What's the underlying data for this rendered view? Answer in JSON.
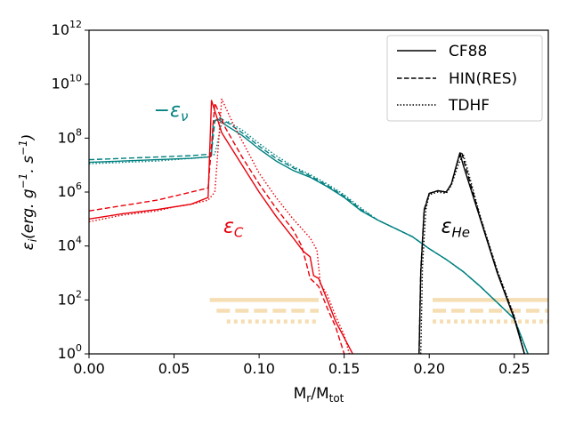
{
  "chart_data": {
    "type": "line",
    "xlabel": "M",
    "xlabel_sub1": "r",
    "xlabel_mid": "/M",
    "xlabel_sub2": "tot",
    "ylabel": "ε",
    "ylabel_sub": "i",
    "ylabel_rest": "(erg. g",
    "ylabel_exp1": "−1",
    "ylabel_mid": ". s",
    "ylabel_exp2": "−1",
    "ylabel_close": ")",
    "xlim": [
      0.0,
      0.27
    ],
    "ylim_log10": [
      0,
      12
    ],
    "xticks": [
      0.0,
      0.05,
      0.1,
      0.15,
      0.2,
      0.25
    ],
    "xtick_labels": [
      "0.00",
      "0.05",
      "0.10",
      "0.15",
      "0.20",
      "0.25"
    ],
    "yticks_log10": [
      0,
      2,
      4,
      6,
      8,
      10,
      12
    ],
    "ytick_base": "10",
    "ytick_exps": [
      "0",
      "2",
      "4",
      "6",
      "8",
      "10",
      "12"
    ],
    "legend": {
      "position": "top-right",
      "entries": [
        {
          "label": "CF88",
          "dash": "solid"
        },
        {
          "label": "HIN(RES)",
          "dash": "dashed"
        },
        {
          "label": "TDHF",
          "dash": "dotted"
        }
      ]
    },
    "annotations": [
      {
        "id": "nu",
        "sign": "−ε",
        "sub": "ν",
        "color": "#008080",
        "x": 0.038,
        "log10y": 8.8
      },
      {
        "id": "C",
        "main": "ε",
        "sub": "C",
        "color": "#e8000b",
        "x": 0.079,
        "log10y": 4.5
      },
      {
        "id": "He",
        "main": "ε",
        "sub": "He",
        "color": "#000000",
        "x": 0.207,
        "log10y": 4.5
      }
    ],
    "colors": {
      "nu": "#008080",
      "C": "#e8000b",
      "He": "#000000",
      "bands": "#f5deb3"
    },
    "bands": [
      {
        "dash": "solid",
        "log10y": 2.0,
        "x_ranges": [
          [
            0.071,
            0.135
          ],
          [
            0.202,
            0.27
          ]
        ]
      },
      {
        "dash": "dashed",
        "log10y": 1.6,
        "x_ranges": [
          [
            0.075,
            0.135
          ],
          [
            0.202,
            0.27
          ]
        ]
      },
      {
        "dash": "dotted",
        "log10y": 1.2,
        "x_ranges": [
          [
            0.081,
            0.135
          ],
          [
            0.202,
            0.27
          ]
        ]
      }
    ],
    "series": [
      {
        "name": "nu_CF88",
        "group": "nu",
        "dash": "solid",
        "points": [
          [
            0,
            7.1
          ],
          [
            0.02,
            7.15
          ],
          [
            0.04,
            7.2
          ],
          [
            0.06,
            7.25
          ],
          [
            0.07,
            7.3
          ],
          [
            0.072,
            7.35
          ],
          [
            0.073,
            8.6
          ],
          [
            0.076,
            8.7
          ],
          [
            0.08,
            8.5
          ],
          [
            0.09,
            8.1
          ],
          [
            0.1,
            7.6
          ],
          [
            0.11,
            7.15
          ],
          [
            0.12,
            6.8
          ],
          [
            0.13,
            6.55
          ],
          [
            0.14,
            6.2
          ],
          [
            0.15,
            5.8
          ],
          [
            0.16,
            5.3
          ],
          [
            0.17,
            4.95
          ],
          [
            0.18,
            4.65
          ],
          [
            0.19,
            4.35
          ],
          [
            0.2,
            3.9
          ],
          [
            0.21,
            3.5
          ],
          [
            0.22,
            3.05
          ],
          [
            0.23,
            2.5
          ],
          [
            0.24,
            1.9
          ],
          [
            0.25,
            1.3
          ],
          [
            0.258,
            0.0
          ]
        ]
      },
      {
        "name": "nu_HIN",
        "group": "nu",
        "dash": "dashed",
        "points": [
          [
            0,
            7.2
          ],
          [
            0.02,
            7.25
          ],
          [
            0.04,
            7.3
          ],
          [
            0.06,
            7.35
          ],
          [
            0.07,
            7.4
          ],
          [
            0.072,
            7.45
          ],
          [
            0.074,
            8.65
          ],
          [
            0.077,
            8.75
          ],
          [
            0.082,
            8.55
          ],
          [
            0.09,
            8.2
          ],
          [
            0.1,
            7.7
          ],
          [
            0.11,
            7.25
          ],
          [
            0.12,
            6.9
          ],
          [
            0.13,
            6.6
          ],
          [
            0.14,
            6.25
          ],
          [
            0.15,
            5.85
          ],
          [
            0.16,
            5.35
          ],
          [
            0.17,
            4.95
          ],
          [
            0.18,
            4.65
          ],
          [
            0.19,
            4.35
          ],
          [
            0.2,
            3.9
          ],
          [
            0.21,
            3.5
          ],
          [
            0.22,
            3.05
          ],
          [
            0.23,
            2.5
          ],
          [
            0.24,
            1.9
          ],
          [
            0.25,
            1.3
          ],
          [
            0.258,
            0.0
          ]
        ]
      },
      {
        "name": "nu_TDHF",
        "group": "nu",
        "dash": "dotted",
        "points": [
          [
            0,
            7.05
          ],
          [
            0.02,
            7.1
          ],
          [
            0.04,
            7.15
          ],
          [
            0.06,
            7.25
          ],
          [
            0.07,
            7.3
          ],
          [
            0.074,
            7.4
          ],
          [
            0.078,
            8.55
          ],
          [
            0.082,
            8.6
          ],
          [
            0.09,
            8.3
          ],
          [
            0.1,
            7.8
          ],
          [
            0.11,
            7.35
          ],
          [
            0.12,
            6.95
          ],
          [
            0.13,
            6.65
          ],
          [
            0.14,
            6.3
          ],
          [
            0.15,
            5.9
          ],
          [
            0.16,
            5.4
          ],
          [
            0.17,
            4.95
          ],
          [
            0.18,
            4.65
          ],
          [
            0.19,
            4.35
          ],
          [
            0.2,
            3.9
          ],
          [
            0.21,
            3.5
          ],
          [
            0.22,
            3.05
          ],
          [
            0.23,
            2.5
          ],
          [
            0.24,
            1.9
          ],
          [
            0.25,
            1.3
          ],
          [
            0.258,
            0.0
          ]
        ]
      },
      {
        "name": "C_CF88",
        "group": "C",
        "dash": "solid",
        "points": [
          [
            0,
            5.0
          ],
          [
            0.02,
            5.2
          ],
          [
            0.04,
            5.35
          ],
          [
            0.05,
            5.45
          ],
          [
            0.06,
            5.55
          ],
          [
            0.07,
            5.8
          ],
          [
            0.072,
            9.4
          ],
          [
            0.078,
            8.2
          ],
          [
            0.09,
            7.0
          ],
          [
            0.1,
            6.0
          ],
          [
            0.11,
            5.1
          ],
          [
            0.12,
            4.3
          ],
          [
            0.126,
            3.8
          ],
          [
            0.13,
            3.6
          ],
          [
            0.132,
            2.9
          ],
          [
            0.135,
            2.8
          ],
          [
            0.14,
            2.0
          ],
          [
            0.145,
            1.2
          ],
          [
            0.15,
            0.6
          ],
          [
            0.155,
            0.0
          ]
        ]
      },
      {
        "name": "C_HIN",
        "group": "C",
        "dash": "dashed",
        "points": [
          [
            0,
            5.3
          ],
          [
            0.02,
            5.5
          ],
          [
            0.04,
            5.7
          ],
          [
            0.05,
            5.85
          ],
          [
            0.06,
            6.0
          ],
          [
            0.07,
            6.15
          ],
          [
            0.074,
            9.3
          ],
          [
            0.08,
            8.4
          ],
          [
            0.09,
            7.3
          ],
          [
            0.1,
            6.3
          ],
          [
            0.11,
            5.4
          ],
          [
            0.12,
            4.6
          ],
          [
            0.125,
            4.0
          ],
          [
            0.128,
            3.3
          ],
          [
            0.13,
            2.8
          ],
          [
            0.135,
            2.5
          ],
          [
            0.14,
            1.7
          ],
          [
            0.145,
            1.0
          ],
          [
            0.15,
            0.0
          ]
        ]
      },
      {
        "name": "C_TDHF",
        "group": "C",
        "dash": "dotted",
        "points": [
          [
            0,
            4.9
          ],
          [
            0.02,
            5.15
          ],
          [
            0.04,
            5.3
          ],
          [
            0.05,
            5.45
          ],
          [
            0.06,
            5.55
          ],
          [
            0.07,
            5.7
          ],
          [
            0.074,
            6.0
          ],
          [
            0.078,
            9.45
          ],
          [
            0.085,
            8.5
          ],
          [
            0.1,
            6.7
          ],
          [
            0.11,
            5.8
          ],
          [
            0.12,
            5.0
          ],
          [
            0.13,
            4.3
          ],
          [
            0.134,
            3.85
          ],
          [
            0.136,
            2.6
          ],
          [
            0.14,
            2.2
          ],
          [
            0.145,
            1.4
          ],
          [
            0.15,
            0.7
          ],
          [
            0.153,
            0.0
          ]
        ]
      },
      {
        "name": "He_CF88",
        "group": "He",
        "dash": "solid",
        "points": [
          [
            0.194,
            0.0
          ],
          [
            0.195,
            3.0
          ],
          [
            0.197,
            5.3
          ],
          [
            0.2,
            5.95
          ],
          [
            0.205,
            6.05
          ],
          [
            0.21,
            6.0
          ],
          [
            0.213,
            6.3
          ],
          [
            0.216,
            7.0
          ],
          [
            0.218,
            7.45
          ],
          [
            0.22,
            7.0
          ],
          [
            0.23,
            5.0
          ],
          [
            0.24,
            3.0
          ],
          [
            0.25,
            1.3
          ],
          [
            0.256,
            0.0
          ]
        ]
      },
      {
        "name": "He_HIN",
        "group": "He",
        "dash": "dashed",
        "points": [
          [
            0.194,
            0.0
          ],
          [
            0.195,
            3.1
          ],
          [
            0.197,
            5.35
          ],
          [
            0.2,
            5.95
          ],
          [
            0.205,
            6.05
          ],
          [
            0.21,
            6.0
          ],
          [
            0.213,
            6.3
          ],
          [
            0.216,
            7.0
          ],
          [
            0.219,
            7.5
          ],
          [
            0.221,
            7.0
          ],
          [
            0.23,
            5.05
          ],
          [
            0.24,
            3.05
          ],
          [
            0.25,
            1.35
          ],
          [
            0.256,
            0.0
          ]
        ]
      },
      {
        "name": "He_TDHF",
        "group": "He",
        "dash": "dotted",
        "points": [
          [
            0.195,
            0.0
          ],
          [
            0.196,
            3.2
          ],
          [
            0.198,
            5.35
          ],
          [
            0.2,
            5.9
          ],
          [
            0.205,
            6.0
          ],
          [
            0.21,
            5.95
          ],
          [
            0.213,
            6.25
          ],
          [
            0.217,
            7.0
          ],
          [
            0.22,
            7.4
          ],
          [
            0.222,
            6.95
          ],
          [
            0.23,
            5.1
          ],
          [
            0.24,
            3.1
          ],
          [
            0.25,
            1.4
          ],
          [
            0.256,
            0.0
          ]
        ]
      }
    ]
  }
}
